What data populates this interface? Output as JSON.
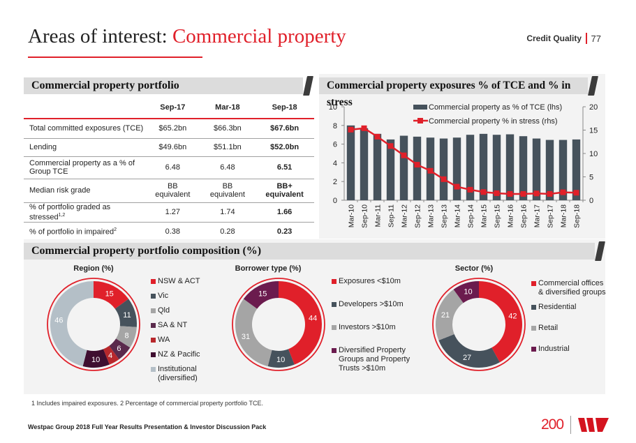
{
  "header": {
    "title_prefix": "Areas of interest: ",
    "title_accent": "Commercial property",
    "section": "Credit Quality",
    "page": "77"
  },
  "colors": {
    "accent": "#e0202a",
    "dark_slate": "#46525c",
    "grey": "#a5a5a5",
    "plum": "#5a2a4c",
    "brick": "#b8282c",
    "aubergine": "#3f0e30",
    "light_blue_grey": "#b4bfc7",
    "purple": "#6b1b4e"
  },
  "portfolio": {
    "heading": "Commercial property portfolio",
    "columns": [
      "",
      "Sep-17",
      "Mar-18",
      "Sep-18"
    ],
    "rows": [
      {
        "label": "Total committed exposures (TCE)",
        "sup": "",
        "values": [
          "$65.2bn",
          "$66.3bn",
          "$67.6bn"
        ]
      },
      {
        "label": "Lending",
        "sup": "",
        "values": [
          "$49.6bn",
          "$51.1bn",
          "$52.0bn"
        ]
      },
      {
        "label": "Commercial property as a % of Group TCE",
        "sup": "",
        "values": [
          "6.48",
          "6.48",
          "6.51"
        ]
      },
      {
        "label": "Median risk grade",
        "sup": "",
        "values": [
          "BB equivalent",
          "BB equivalent",
          "BB+ equivalent"
        ]
      },
      {
        "label": "% of portfolio graded as stressed",
        "sup": "1,2",
        "values": [
          "1.27",
          "1.74",
          "1.66"
        ]
      },
      {
        "label": "% of portfolio in impaired",
        "sup": "2",
        "values": [
          "0.38",
          "0.28",
          "0.23"
        ]
      }
    ]
  },
  "composition": {
    "heading": "Commercial property portfolio composition (%)"
  },
  "chart_data": [
    {
      "type": "bar",
      "title": "Commercial property exposures % of TCE and % in stress",
      "categories": [
        "Mar-10",
        "Sep-10",
        "Mar-11",
        "Sep-11",
        "Mar-12",
        "Sep-12",
        "Mar-13",
        "Sep-13",
        "Mar-14",
        "Sep-14",
        "Mar-15",
        "Sep-15",
        "Mar-16",
        "Sep-16",
        "Mar-17",
        "Sep-17",
        "Mar-18",
        "Sep-18"
      ],
      "series": [
        {
          "name": "Commercial property as % of TCE (lhs)",
          "type": "bar",
          "axis": "left",
          "color": "#46525c",
          "values": [
            8.0,
            7.7,
            7.1,
            6.5,
            6.9,
            6.8,
            6.7,
            6.6,
            6.7,
            7.0,
            7.1,
            7.0,
            7.05,
            6.85,
            6.6,
            6.45,
            6.45,
            6.5
          ]
        },
        {
          "name": "Commercial property % in stress (rhs)",
          "type": "line",
          "axis": "right",
          "color": "#e0202a",
          "values": [
            15.1,
            15.4,
            13.6,
            11.6,
            9.6,
            7.6,
            6.3,
            4.5,
            2.9,
            2.25,
            1.75,
            1.5,
            1.35,
            1.35,
            1.45,
            1.35,
            1.7,
            1.6
          ]
        }
      ],
      "ylim_left": [
        0,
        10
      ],
      "yticks_left": [
        "0",
        "2",
        "4",
        "6",
        "8",
        "10"
      ],
      "ylim_right": [
        0,
        20
      ],
      "yticks_right": [
        "0",
        "5",
        "10",
        "15",
        "20"
      ],
      "legend": "top-right",
      "grid": false
    },
    {
      "type": "pie",
      "title": "Region (%)",
      "labels": [
        "NSW & ACT",
        "Vic",
        "Qld",
        "SA & NT",
        "WA",
        "NZ & Pacific",
        "Institutional (diversified)"
      ],
      "values": [
        15,
        11,
        8,
        6,
        4,
        10,
        46
      ],
      "colors": [
        "#e0202a",
        "#46525c",
        "#a5a5a5",
        "#5a2a4c",
        "#b8282c",
        "#3f0e30",
        "#b4bfc7"
      ],
      "legend": "right"
    },
    {
      "type": "pie",
      "title": "Borrower type (%)",
      "labels": [
        "Exposures <$10m",
        "Developers >$10m",
        "Investors >$10m",
        "Diversified Property Groups and Property Trusts >$10m"
      ],
      "values": [
        44,
        10,
        31,
        15
      ],
      "colors": [
        "#e0202a",
        "#46525c",
        "#a5a5a5",
        "#6b1b4e"
      ],
      "legend": "right"
    },
    {
      "type": "pie",
      "title": "Sector (%)",
      "labels": [
        "Commercial offices & diversified groups",
        "Residential",
        "Retail",
        "Industrial"
      ],
      "values": [
        42,
        27,
        21,
        10
      ],
      "colors": [
        "#e0202a",
        "#46525c",
        "#a5a5a5",
        "#6b1b4e"
      ],
      "legend": "right"
    }
  ],
  "footnote": "1 Includes impaired exposures. 2 Percentage of commercial property portfolio TCE.",
  "footer": {
    "text": "Westpac Group 2018 Full Year Results Presentation & Investor Discussion Pack",
    "logo_200": "200",
    "logo_brand": "Westpac W"
  }
}
